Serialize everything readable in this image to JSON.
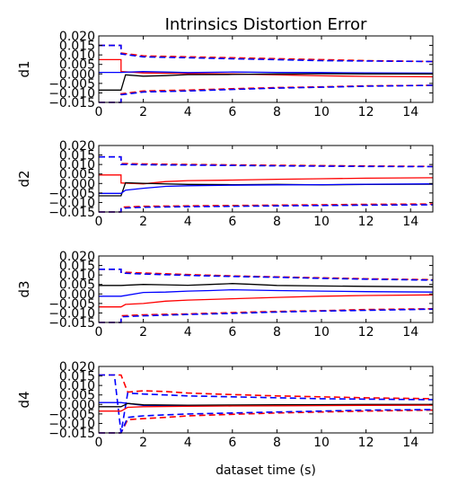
{
  "title": "Intrinsics Distortion Error",
  "xlabel": "dataset time (s)",
  "colors": {
    "red": "#ff0000",
    "blue": "#0000ff",
    "black": "#000000"
  },
  "chart_data": [
    {
      "type": "line",
      "ylabel": "d1",
      "xlim": [
        0,
        15
      ],
      "ylim": [
        -0.015,
        0.02
      ],
      "xticks": [
        "0",
        "2",
        "4",
        "6",
        "8",
        "10",
        "12",
        "14"
      ],
      "yticks": [
        "−0.015",
        "−0.010",
        "−0.005",
        "0.000",
        "0.005",
        "0.010",
        "0.015",
        "0.020"
      ],
      "series": [
        {
          "color": "red",
          "style": "dashed",
          "x": [
            0,
            1,
            1,
            2,
            4,
            6,
            8,
            10,
            12,
            15
          ],
          "y": [
            0.015,
            0.015,
            0.011,
            0.0095,
            0.009,
            0.0085,
            0.008,
            0.0075,
            0.007,
            0.0065
          ]
        },
        {
          "color": "blue",
          "style": "dashed",
          "x": [
            0,
            1,
            1,
            2,
            4,
            6,
            8,
            10,
            12,
            15
          ],
          "y": [
            0.015,
            0.015,
            0.0105,
            0.009,
            0.0085,
            0.008,
            0.0075,
            0.007,
            0.0068,
            0.0065
          ]
        },
        {
          "color": "red",
          "style": "dashed",
          "x": [
            0,
            1,
            1,
            2,
            4,
            6,
            8,
            10,
            12,
            15
          ],
          "y": [
            -0.015,
            -0.015,
            -0.0105,
            -0.009,
            -0.0085,
            -0.0078,
            -0.0072,
            -0.0068,
            -0.0063,
            -0.006
          ]
        },
        {
          "color": "blue",
          "style": "dashed",
          "x": [
            0,
            1,
            1,
            2,
            4,
            6,
            8,
            10,
            12,
            15
          ],
          "y": [
            -0.015,
            -0.015,
            -0.011,
            -0.0095,
            -0.009,
            -0.0082,
            -0.0075,
            -0.007,
            -0.0065,
            -0.006
          ]
        },
        {
          "color": "red",
          "style": "solid",
          "x": [
            0,
            1,
            1,
            2,
            4,
            6,
            8,
            10,
            12,
            15
          ],
          "y": [
            0.0075,
            0.0075,
            0.0012,
            0.0005,
            0.0002,
            0.0,
            -0.0005,
            -0.001,
            -0.0013,
            -0.0015
          ]
        },
        {
          "color": "blue",
          "style": "solid",
          "x": [
            0,
            1,
            1.2,
            2,
            3,
            4,
            6,
            8,
            10,
            12,
            15
          ],
          "y": [
            0.0008,
            0.0008,
            0.0009,
            0.0012,
            0.001,
            0.0007,
            0.001,
            0.0008,
            0.0007,
            0.0005,
            0.0004
          ]
        },
        {
          "color": "black",
          "style": "solid",
          "x": [
            0,
            1,
            1.2,
            2,
            3,
            4,
            6,
            8,
            10,
            12,
            15
          ],
          "y": [
            -0.0085,
            -0.0085,
            -0.0005,
            -0.0012,
            -0.0009,
            -0.0004,
            -0.0003,
            0.0,
            0.0001,
            0.0,
            0.0
          ]
        }
      ]
    },
    {
      "type": "line",
      "ylabel": "d2",
      "xlim": [
        0,
        15
      ],
      "ylim": [
        -0.015,
        0.02
      ],
      "xticks": [
        "0",
        "2",
        "4",
        "6",
        "8",
        "10",
        "12",
        "14"
      ],
      "yticks": [
        "−0.015",
        "−0.010",
        "−0.005",
        "0.000",
        "0.005",
        "0.010",
        "0.015",
        "0.020"
      ],
      "series": [
        {
          "color": "red",
          "style": "dashed",
          "x": [
            0,
            1,
            1,
            2,
            4,
            6,
            8,
            10,
            12,
            15
          ],
          "y": [
            0.014,
            0.014,
            0.0105,
            0.0103,
            0.01,
            0.0098,
            0.0096,
            0.0094,
            0.0092,
            0.009
          ]
        },
        {
          "color": "blue",
          "style": "dashed",
          "x": [
            0,
            1,
            1,
            2,
            4,
            6,
            8,
            10,
            12,
            15
          ],
          "y": [
            0.014,
            0.014,
            0.01,
            0.0099,
            0.0097,
            0.0095,
            0.0093,
            0.0091,
            0.009,
            0.0089
          ]
        },
        {
          "color": "red",
          "style": "dashed",
          "x": [
            0,
            1,
            1,
            2,
            4,
            6,
            8,
            10,
            12,
            15
          ],
          "y": [
            -0.015,
            -0.015,
            -0.0125,
            -0.012,
            -0.0118,
            -0.0116,
            -0.0114,
            -0.0112,
            -0.011,
            -0.0108
          ]
        },
        {
          "color": "blue",
          "style": "dashed",
          "x": [
            0,
            1,
            1,
            2,
            4,
            6,
            8,
            10,
            12,
            15
          ],
          "y": [
            -0.015,
            -0.015,
            -0.013,
            -0.0125,
            -0.0122,
            -0.012,
            -0.0118,
            -0.0116,
            -0.0114,
            -0.0112
          ]
        },
        {
          "color": "red",
          "style": "solid",
          "x": [
            0,
            1,
            1,
            2,
            3,
            4,
            6,
            8,
            10,
            12,
            15
          ],
          "y": [
            0.0045,
            0.0045,
            0.0003,
            -0.0002,
            0.001,
            0.0015,
            0.0018,
            0.0022,
            0.0025,
            0.0028,
            0.003
          ]
        },
        {
          "color": "black",
          "style": "solid",
          "x": [
            0,
            1,
            1.2,
            2,
            4,
            6,
            8,
            10,
            12,
            15
          ],
          "y": [
            -0.0065,
            -0.0065,
            0.0004,
            0.0001,
            -0.0005,
            -0.0006,
            -0.0005,
            -0.0007,
            -0.0005,
            -0.0004
          ]
        },
        {
          "color": "blue",
          "style": "solid",
          "x": [
            0,
            1,
            1.2,
            2,
            3,
            4,
            6,
            8,
            10,
            12,
            15
          ],
          "y": [
            -0.0052,
            -0.0052,
            -0.0035,
            -0.0025,
            -0.0015,
            -0.0012,
            -0.0009,
            -0.0007,
            -0.0006,
            -0.0004,
            -0.0002
          ]
        }
      ]
    },
    {
      "type": "line",
      "ylabel": "d3",
      "xlim": [
        0,
        15
      ],
      "ylim": [
        -0.015,
        0.02
      ],
      "xticks": [
        "0",
        "2",
        "4",
        "6",
        "8",
        "10",
        "12",
        "14"
      ],
      "yticks": [
        "−0.015",
        "−0.010",
        "−0.005",
        "0.000",
        "0.005",
        "0.010",
        "0.015",
        "0.020"
      ],
      "series": [
        {
          "color": "red",
          "style": "dashed",
          "x": [
            0,
            1,
            1,
            2,
            4,
            6,
            8,
            10,
            12,
            15
          ],
          "y": [
            0.013,
            0.013,
            0.0115,
            0.011,
            0.0102,
            0.0095,
            0.009,
            0.0085,
            0.008,
            0.0075
          ]
        },
        {
          "color": "blue",
          "style": "dashed",
          "x": [
            0,
            1,
            1,
            2,
            4,
            6,
            8,
            10,
            12,
            15
          ],
          "y": [
            0.013,
            0.013,
            0.011,
            0.0105,
            0.0098,
            0.0092,
            0.0088,
            0.0082,
            0.0078,
            0.0073
          ]
        },
        {
          "color": "red",
          "style": "dashed",
          "x": [
            0,
            1,
            1,
            2,
            4,
            6,
            8,
            10,
            12,
            15
          ],
          "y": [
            -0.015,
            -0.015,
            -0.0115,
            -0.011,
            -0.0105,
            -0.0098,
            -0.0092,
            -0.0088,
            -0.0082,
            -0.0078
          ]
        },
        {
          "color": "blue",
          "style": "dashed",
          "x": [
            0,
            1,
            1,
            2,
            4,
            6,
            8,
            10,
            12,
            15
          ],
          "y": [
            -0.015,
            -0.015,
            -0.012,
            -0.0115,
            -0.0108,
            -0.0102,
            -0.0095,
            -0.009,
            -0.0086,
            -0.008
          ]
        },
        {
          "color": "black",
          "style": "solid",
          "x": [
            0,
            1,
            2,
            3,
            4,
            5,
            6,
            7,
            8,
            10,
            12,
            15
          ],
          "y": [
            0.0045,
            0.0045,
            0.005,
            0.0048,
            0.0046,
            0.005,
            0.0055,
            0.005,
            0.0045,
            0.0042,
            0.004,
            0.0038
          ]
        },
        {
          "color": "blue",
          "style": "solid",
          "x": [
            0,
            1,
            2,
            3,
            4,
            5,
            6,
            8,
            10,
            12,
            15
          ],
          "y": [
            -0.0012,
            -0.0012,
            0.0008,
            0.001,
            0.0015,
            0.0018,
            0.0022,
            0.0018,
            0.0015,
            0.0012,
            0.001
          ]
        },
        {
          "color": "red",
          "style": "solid",
          "x": [
            0,
            1,
            1.2,
            2,
            3,
            4,
            6,
            8,
            10,
            12,
            15
          ],
          "y": [
            -0.0068,
            -0.0068,
            -0.0055,
            -0.005,
            -0.0038,
            -0.0032,
            -0.0025,
            -0.0018,
            -0.0012,
            -0.0008,
            -0.0005
          ]
        }
      ]
    },
    {
      "type": "line",
      "ylabel": "d4",
      "xlim": [
        0,
        15
      ],
      "ylim": [
        -0.015,
        0.02
      ],
      "xticks": [
        "0",
        "2",
        "4",
        "6",
        "8",
        "10",
        "12",
        "14"
      ],
      "yticks": [
        "−0.015",
        "−0.010",
        "−0.005",
        "0.000",
        "0.005",
        "0.010",
        "0.015",
        "0.020"
      ],
      "series": [
        {
          "color": "red",
          "style": "dashed",
          "x": [
            0,
            1,
            1.3,
            2,
            3,
            4,
            6,
            8,
            10,
            12,
            15
          ],
          "y": [
            0.0155,
            0.0155,
            0.0065,
            0.0072,
            0.0068,
            0.006,
            0.0052,
            0.0045,
            0.004,
            0.0035,
            0.003
          ]
        },
        {
          "color": "blue",
          "style": "dashed",
          "x": [
            0,
            0.7,
            1,
            1.3,
            2,
            3,
            4,
            6,
            8,
            10,
            12,
            15
          ],
          "y": [
            0.0155,
            0.0155,
            -0.015,
            0.006,
            0.0055,
            0.005,
            0.0045,
            0.004,
            0.0035,
            0.003,
            0.0028,
            0.0025
          ]
        },
        {
          "color": "red",
          "style": "dashed",
          "x": [
            0,
            1,
            1.3,
            2,
            3,
            4,
            6,
            8,
            10,
            12,
            15
          ],
          "y": [
            -0.015,
            -0.015,
            -0.008,
            -0.0075,
            -0.0068,
            -0.006,
            -0.0052,
            -0.0045,
            -0.004,
            -0.0035,
            -0.003
          ]
        },
        {
          "color": "blue",
          "style": "dashed",
          "x": [
            0,
            1,
            1.3,
            2,
            3,
            4,
            6,
            8,
            10,
            12,
            15
          ],
          "y": [
            -0.015,
            -0.015,
            -0.0068,
            -0.006,
            -0.0055,
            -0.005,
            -0.0045,
            -0.004,
            -0.0035,
            -0.003,
            -0.0027
          ]
        },
        {
          "color": "blue",
          "style": "solid",
          "x": [
            0,
            1,
            1.3,
            2,
            4,
            6,
            8,
            10,
            12,
            15
          ],
          "y": [
            0.001,
            0.001,
            0.0005,
            -0.0005,
            -0.0008,
            -0.0007,
            -0.0006,
            -0.0005,
            -0.0004,
            -0.0003
          ]
        },
        {
          "color": "black",
          "style": "solid",
          "x": [
            0,
            1,
            1.3,
            2,
            4,
            6,
            8,
            10,
            12,
            15
          ],
          "y": [
            -0.0012,
            -0.0012,
            0.0005,
            -0.0002,
            -0.0004,
            -0.0003,
            -0.0002,
            -0.0001,
            0.0,
            0.0
          ]
        },
        {
          "color": "red",
          "style": "solid",
          "x": [
            0,
            1,
            1.3,
            2,
            4,
            6,
            8,
            10,
            12,
            15
          ],
          "y": [
            -0.0035,
            -0.0035,
            -0.0015,
            -0.0012,
            -0.001,
            -0.0008,
            -0.0007,
            -0.0006,
            -0.0005,
            -0.0004
          ]
        }
      ]
    }
  ]
}
